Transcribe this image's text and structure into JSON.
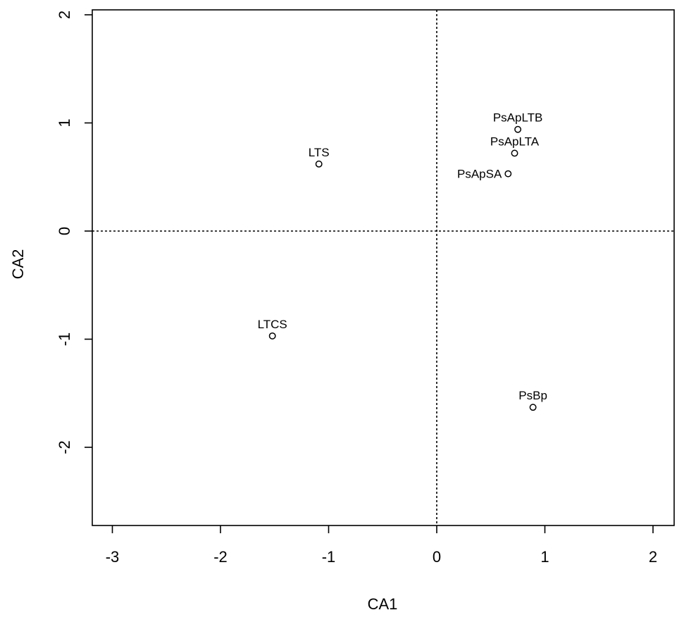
{
  "chart_data": {
    "type": "scatter",
    "xlabel": "CA1",
    "ylabel": "CA2",
    "xlim": [
      -3.2,
      2.2
    ],
    "ylim": [
      -2.75,
      2.1
    ],
    "x_ticks": [
      -3,
      -2,
      -1,
      0,
      1,
      2
    ],
    "y_ticks": [
      -2,
      -1,
      0,
      1,
      2
    ],
    "x_tick_labels": [
      "-3",
      "-2",
      "-1",
      "0",
      "1",
      "2"
    ],
    "y_tick_labels": [
      "-2",
      "-1",
      "0",
      "1",
      "2"
    ],
    "reference_lines": {
      "x": 0,
      "y": 0,
      "style": "dotted"
    },
    "grid": false,
    "marker": "o",
    "points": [
      {
        "label": "PsApLTB",
        "x": 0.75,
        "y": 0.94,
        "label_position": "above"
      },
      {
        "label": "PsApLTA",
        "x": 0.72,
        "y": 0.72,
        "label_position": "above"
      },
      {
        "label": "PsApSA",
        "x": 0.66,
        "y": 0.53,
        "label_position": "left"
      },
      {
        "label": "LTS",
        "x": -1.09,
        "y": 0.62,
        "label_position": "above"
      },
      {
        "label": "LTCS",
        "x": -1.52,
        "y": -0.97,
        "label_position": "above"
      },
      {
        "label": "PsBp",
        "x": 0.89,
        "y": -1.63,
        "label_position": "above"
      }
    ]
  }
}
